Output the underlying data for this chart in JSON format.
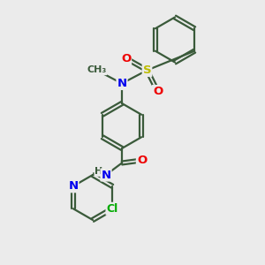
{
  "bg_color": "#ebebeb",
  "bond_color": "#3a5a3a",
  "bond_width": 1.6,
  "atom_colors": {
    "N": "#0000ee",
    "O": "#ee0000",
    "S": "#bbbb00",
    "Cl": "#00aa00",
    "C": "#3a5a3a",
    "H": "#3a5a3a"
  },
  "font_size": 8.5,
  "fig_size": [
    3.0,
    3.0
  ],
  "dpi": 100
}
